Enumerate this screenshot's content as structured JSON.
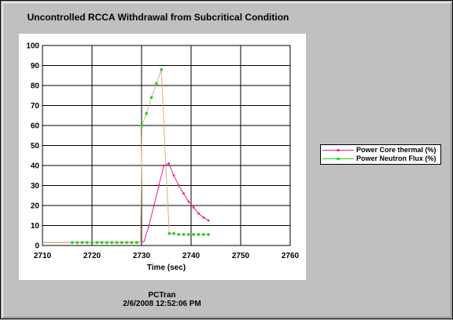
{
  "chart_data": {
    "type": "line",
    "title": "Uncontrolled RCCA Withdrawal from Subcritical Condition",
    "xlabel": "Time (sec)",
    "ylabel": "",
    "xlim": [
      2710,
      2760
    ],
    "ylim": [
      0,
      100
    ],
    "xticks": [
      2710,
      2720,
      2730,
      2740,
      2750,
      2760
    ],
    "yticks": [
      0,
      10,
      20,
      30,
      40,
      50,
      60,
      70,
      80,
      90,
      100
    ],
    "grid": true,
    "legend_position": "right",
    "series": [
      {
        "name": "Power Core thermal (%)",
        "color": "#e0218a",
        "marker": "point",
        "x": [
          2710,
          2716,
          2720,
          2725,
          2729.5,
          2730.5,
          2731.5,
          2732.5,
          2733.5,
          2734.5,
          2735.5,
          2736.5,
          2737.5,
          2738.5,
          2739.5,
          2740.5,
          2741.5,
          2742.5,
          2743.5
        ],
        "y": [
          1.5,
          1.5,
          1.5,
          1.5,
          1.5,
          2,
          10,
          20,
          30,
          40,
          41,
          35,
          30,
          26,
          22,
          19,
          16,
          14,
          12.5
        ],
        "marker_x": [
          2731.5,
          2732.5,
          2733.5,
          2734.5,
          2735.5,
          2736.5,
          2737.5,
          2738.5,
          2739.5,
          2740.5,
          2741.5,
          2742.5,
          2743.5
        ],
        "marker_y": [
          10,
          20,
          30,
          40,
          41,
          35,
          30,
          26,
          22,
          19,
          16,
          14,
          12.5
        ]
      },
      {
        "name": "Power Neutron Flux (%)",
        "color": "#1fd11f",
        "line_color": "#d8b080",
        "marker": "dot",
        "x": [
          2710,
          2714,
          2716,
          2717,
          2718,
          2719,
          2720,
          2721,
          2722,
          2723,
          2724,
          2725,
          2726,
          2727,
          2728,
          2729,
          2729.8,
          2730.1,
          2731,
          2732,
          2733,
          2734,
          2734.8,
          2735.6,
          2736.5,
          2737.5,
          2738.5,
          2739.5,
          2740.5,
          2741.5,
          2742.5,
          2743.5
        ],
        "y": [
          1.5,
          1.5,
          1.5,
          1.5,
          1.5,
          1.5,
          1.5,
          1.5,
          1.5,
          1.5,
          1.5,
          1.5,
          1.5,
          1.5,
          1.5,
          1.5,
          1.5,
          60,
          66,
          74,
          81,
          88,
          45,
          6,
          6,
          5.5,
          5.5,
          5.5,
          5.5,
          5.5,
          5.5,
          5.5
        ],
        "marker_x": [
          2716,
          2717,
          2718,
          2719,
          2720,
          2721,
          2722,
          2723,
          2724,
          2725,
          2726,
          2727,
          2728,
          2729,
          2730.1,
          2731,
          2732,
          2733,
          2734,
          2735.6,
          2736.5,
          2737.5,
          2738.5,
          2739.5,
          2740.5,
          2741.5,
          2742.5,
          2743.5
        ],
        "marker_y": [
          1.5,
          1.5,
          1.5,
          1.5,
          1.5,
          1.5,
          1.5,
          1.5,
          1.5,
          1.5,
          1.5,
          1.5,
          1.5,
          1.5,
          60,
          66,
          74,
          81,
          88,
          6,
          6,
          5.5,
          5.5,
          5.5,
          5.5,
          5.5,
          5.5,
          5.5
        ]
      }
    ]
  },
  "footer": {
    "app": "PCTran",
    "timestamp": "2/6/2008 12:52:06 PM"
  }
}
